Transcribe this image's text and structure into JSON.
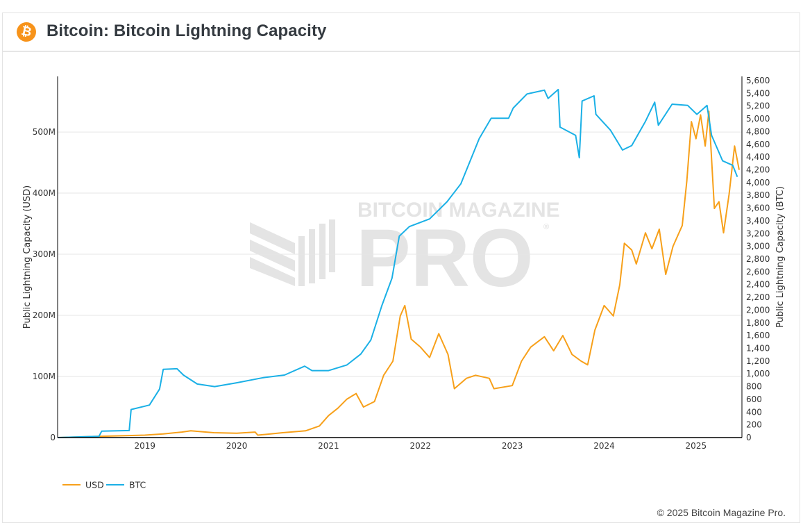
{
  "header": {
    "icon": "bitcoin-icon",
    "title": "Bitcoin: Bitcoin Lightning Capacity"
  },
  "watermark": {
    "line1": "BITCOIN MAGAZINE",
    "line2": "PRO",
    "registered": "®"
  },
  "footer": {
    "copyright": "© 2025 Bitcoin Magazine Pro."
  },
  "colors": {
    "usd": "#f7a01a",
    "btc": "#1ab0e6",
    "grid": "#e6e6e6",
    "axis": "#000000",
    "brand": "#f7931a"
  },
  "chart_data": {
    "type": "line",
    "title": "Bitcoin: Bitcoin Lightning Capacity",
    "xlabel": "",
    "ylabel": "Public Lightning Capacity (USD)",
    "y2label": "Public Lightning Capacity (BTC)",
    "xlim": [
      2018.05,
      2025.5
    ],
    "ylim": [
      0,
      591000000
    ],
    "y2lim": [
      0,
      5600
    ],
    "grid": true,
    "legend_position": "bottom-left",
    "x_ticks": [
      {
        "value": 2019,
        "label": "2019"
      },
      {
        "value": 2020,
        "label": "2020"
      },
      {
        "value": 2021,
        "label": "2021"
      },
      {
        "value": 2022,
        "label": "2022"
      },
      {
        "value": 2023,
        "label": "2023"
      },
      {
        "value": 2024,
        "label": "2024"
      },
      {
        "value": 2025,
        "label": "2025"
      }
    ],
    "y_ticks": [
      {
        "value": 0,
        "label": "0"
      },
      {
        "value": 100000000,
        "label": "100M"
      },
      {
        "value": 200000000,
        "label": "200M"
      },
      {
        "value": 300000000,
        "label": "300M"
      },
      {
        "value": 400000000,
        "label": "400M"
      },
      {
        "value": 500000000,
        "label": "500M"
      }
    ],
    "y2_ticks": [
      {
        "value": 0,
        "label": "0"
      },
      {
        "value": 200,
        "label": "200"
      },
      {
        "value": 400,
        "label": "400"
      },
      {
        "value": 600,
        "label": "600"
      },
      {
        "value": 800,
        "label": "800"
      },
      {
        "value": 1000,
        "label": "1,000"
      },
      {
        "value": 1200,
        "label": "1,200"
      },
      {
        "value": 1400,
        "label": "1,400"
      },
      {
        "value": 1600,
        "label": "1,600"
      },
      {
        "value": 1800,
        "label": "1,800"
      },
      {
        "value": 2000,
        "label": "2,000"
      },
      {
        "value": 2200,
        "label": "2,200"
      },
      {
        "value": 2400,
        "label": "2,400"
      },
      {
        "value": 2600,
        "label": "2,600"
      },
      {
        "value": 2800,
        "label": "2,800"
      },
      {
        "value": 3000,
        "label": "3,000"
      },
      {
        "value": 3200,
        "label": "3,200"
      },
      {
        "value": 3400,
        "label": "3,400"
      },
      {
        "value": 3600,
        "label": "3,600"
      },
      {
        "value": 3800,
        "label": "3,800"
      },
      {
        "value": 4000,
        "label": "4,000"
      },
      {
        "value": 4200,
        "label": "4,200"
      },
      {
        "value": 4400,
        "label": "4,400"
      },
      {
        "value": 4600,
        "label": "4,600"
      },
      {
        "value": 4800,
        "label": "4,800"
      },
      {
        "value": 5000,
        "label": "5,000"
      },
      {
        "value": 5200,
        "label": "5,200"
      },
      {
        "value": 5400,
        "label": "5,400"
      },
      {
        "value": 5600,
        "label": "5,600"
      }
    ],
    "series": [
      {
        "name": "USD",
        "axis": "left",
        "unit": "USD",
        "x": [
          2018.05,
          2018.5,
          2019.0,
          2019.2,
          2019.4,
          2019.5,
          2019.75,
          2020.0,
          2020.2,
          2020.23,
          2020.5,
          2020.75,
          2020.9,
          2021.0,
          2021.1,
          2021.2,
          2021.3,
          2021.38,
          2021.5,
          2021.6,
          2021.7,
          2021.78,
          2021.83,
          2021.9,
          2022.0,
          2022.1,
          2022.2,
          2022.3,
          2022.37,
          2022.5,
          2022.6,
          2022.75,
          2022.8,
          2023.0,
          2023.1,
          2023.2,
          2023.35,
          2023.45,
          2023.55,
          2023.65,
          2023.75,
          2023.82,
          2023.9,
          2024.0,
          2024.1,
          2024.17,
          2024.22,
          2024.3,
          2024.35,
          2024.45,
          2024.52,
          2024.6,
          2024.67,
          2024.75,
          2024.85,
          2024.9,
          2024.95,
          2025.0,
          2025.05,
          2025.1,
          2025.14,
          2025.2,
          2025.25,
          2025.3,
          2025.36,
          2025.42,
          2025.47
        ],
        "values": [
          0,
          2000000,
          4000000,
          6000000,
          9000000,
          11000000,
          8000000,
          7000000,
          9000000,
          4000000,
          8000000,
          11000000,
          19000000,
          36000000,
          48000000,
          63000000,
          72000000,
          50000000,
          59000000,
          102000000,
          125000000,
          199000000,
          216000000,
          161000000,
          148000000,
          131000000,
          170000000,
          136000000,
          80000000,
          97000000,
          102000000,
          97000000,
          80000000,
          85000000,
          125000000,
          148000000,
          165000000,
          142000000,
          167000000,
          136000000,
          125000000,
          119000000,
          176000000,
          216000000,
          199000000,
          250000000,
          318000000,
          307000000,
          284000000,
          335000000,
          309000000,
          341000000,
          267000000,
          313000000,
          347000000,
          420000000,
          517000000,
          489000000,
          528000000,
          477000000,
          534000000,
          375000000,
          386000000,
          335000000,
          398000000,
          477000000,
          438000000
        ]
      },
      {
        "name": "BTC",
        "axis": "right",
        "unit": "BTC",
        "x": [
          2018.05,
          2018.5,
          2018.53,
          2018.83,
          2018.85,
          2019.05,
          2019.16,
          2019.2,
          2019.35,
          2019.42,
          2019.57,
          2019.76,
          2020.0,
          2020.29,
          2020.52,
          2020.74,
          2020.82,
          2021.0,
          2021.2,
          2021.35,
          2021.46,
          2021.58,
          2021.69,
          2021.77,
          2021.88,
          2022.1,
          2022.29,
          2022.44,
          2022.64,
          2022.77,
          2022.96,
          2023.01,
          2023.16,
          2023.35,
          2023.39,
          2023.5,
          2023.52,
          2023.69,
          2023.73,
          2023.76,
          2023.89,
          2023.91,
          2024.07,
          2024.2,
          2024.3,
          2024.45,
          2024.55,
          2024.59,
          2024.74,
          2024.91,
          2025.01,
          2025.12,
          2025.17,
          2025.29,
          2025.4,
          2025.45
        ],
        "values": [
          0,
          20,
          100,
          110,
          440,
          510,
          760,
          1070,
          1080,
          980,
          840,
          800,
          860,
          940,
          980,
          1120,
          1050,
          1050,
          1140,
          1310,
          1530,
          2070,
          2500,
          3160,
          3310,
          3430,
          3700,
          3980,
          4690,
          5010,
          5010,
          5170,
          5390,
          5450,
          5320,
          5460,
          4870,
          4740,
          4390,
          5280,
          5360,
          5070,
          4820,
          4510,
          4580,
          4960,
          5260,
          4900,
          5230,
          5210,
          5070,
          5210,
          4740,
          4340,
          4270,
          4090
        ]
      }
    ],
    "legend": [
      {
        "name": "USD",
        "color": "#f7a01a"
      },
      {
        "name": "BTC",
        "color": "#1ab0e6"
      }
    ]
  }
}
